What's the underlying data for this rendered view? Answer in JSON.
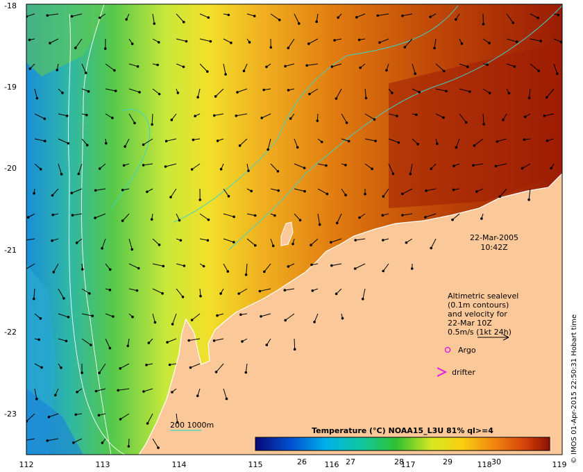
{
  "map": {
    "lon_ticks": [
      "112",
      "113",
      "114",
      "115",
      "116",
      "117",
      "118",
      "119"
    ],
    "lat_ticks": [
      "-18",
      "-19",
      "-20",
      "-21",
      "-22",
      "-23"
    ],
    "date": "22-Mar-2005",
    "time": "10:42Z",
    "legend_lines": [
      "Altimetric sealevel",
      "(0.1m contours)",
      "and velocity for",
      "22-Mar 10Z",
      "0.5m/s (1kt 24h)"
    ],
    "argo_label": "Argo",
    "drifter_label": "drifter",
    "isobath_label": "200  1000m",
    "colorbar_title": "Temperature (°C) NOAA15_L3U 81% ql>=4",
    "colorbar_ticks": [
      "26",
      "27",
      "28",
      "29",
      "30"
    ],
    "credit": "© IMOS 01-Apr-2015 22:50:31 Hobart time",
    "colors": {
      "land": "#fbc89a",
      "cold": "#1e8fd6",
      "warm": "#a01e06",
      "contour": "#39d6c8",
      "isobath": "#ffffff"
    }
  }
}
